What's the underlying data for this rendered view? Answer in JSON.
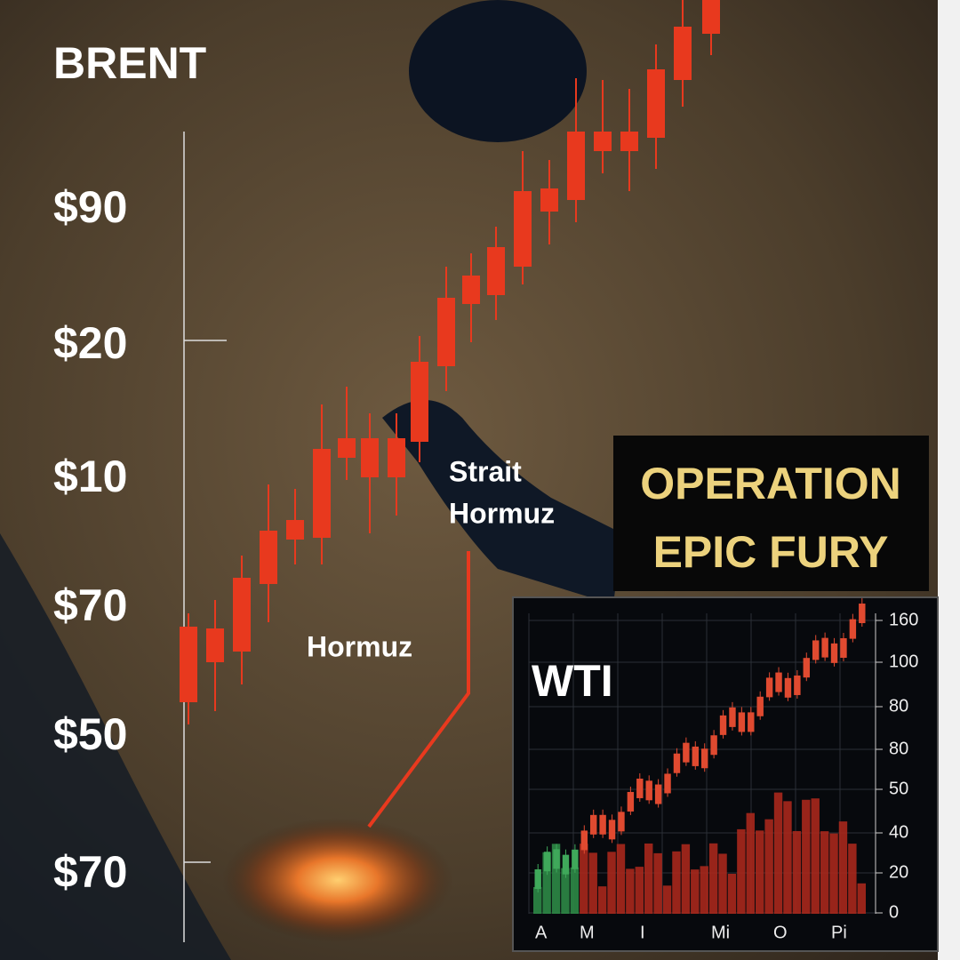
{
  "brent": {
    "title": "BRENT",
    "axis_labels": [
      "$90",
      "$20",
      "$10",
      "$70",
      "$50",
      "$70"
    ]
  },
  "map_labels": {
    "strait": [
      "Strait",
      "Hormuz"
    ],
    "region": "Hormuz"
  },
  "banner": {
    "lines": [
      "OPERATION",
      "EPIC FURY"
    ]
  },
  "wti": {
    "title": "WTI",
    "axis_labels": [
      "160",
      "100",
      "80",
      "80",
      "50",
      "40",
      "20",
      "0"
    ],
    "x_labels": [
      "A",
      "M",
      "I",
      "Mi",
      "O",
      "Pi"
    ]
  }
}
